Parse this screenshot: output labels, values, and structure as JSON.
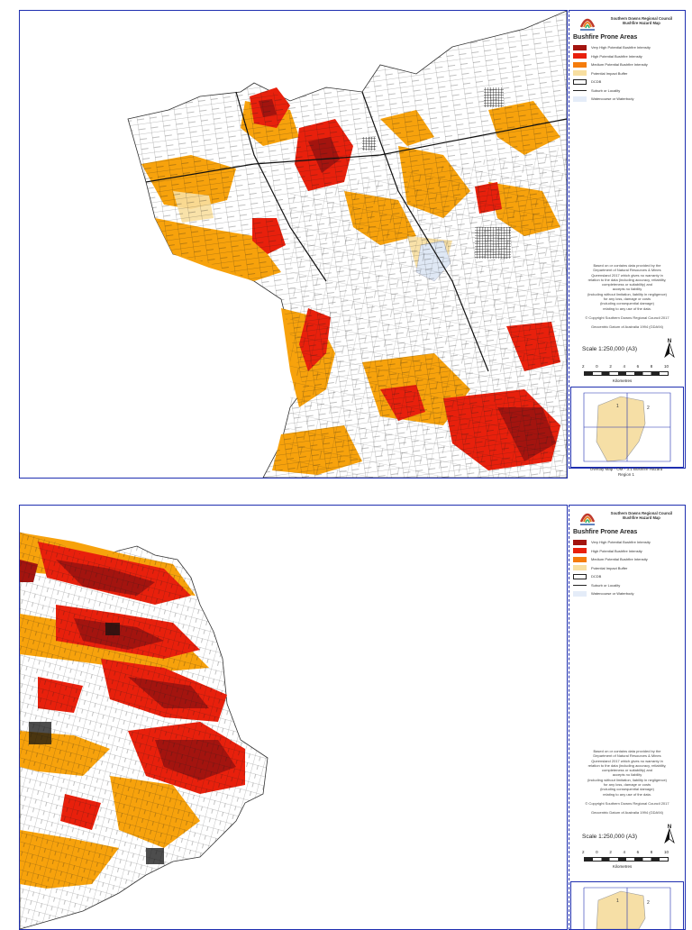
{
  "legend": {
    "council": "Southern Downs Regional Council",
    "map_title": "Bushfire Hazard Map",
    "title": "Bushfire Prone Areas",
    "items": [
      {
        "label": "Very High Potential Bushfire Intensity",
        "color": "#a3140f",
        "kind": "fill"
      },
      {
        "label": "High Potential Bushfire Intensity",
        "color": "#e8200c",
        "kind": "fill"
      },
      {
        "label": "Medium Potential Bushfire Intensity",
        "color": "#f57c0c",
        "kind": "fill"
      },
      {
        "label": "Potential Impact Buffer",
        "color": "#f8dfa0",
        "kind": "fill"
      },
      {
        "label": "DCDB",
        "color": "#ffffff",
        "kind": "outline"
      },
      {
        "label": "Suburb or Locality",
        "color": "#222222",
        "kind": "line"
      },
      {
        "label": "Watercourse or Waterbody",
        "color": "#e4ecf8",
        "kind": "fill"
      }
    ],
    "disclaimer": [
      "Based on or contains data provided by the",
      "Department of Natural Resources & Mines",
      "Queensland 2017 which gives no warranty in",
      "relation to the data (including accuracy, reliability,",
      "completeness or suitability) and",
      "accepts no liability",
      "(including without limitation, liability in negligence)",
      "for any loss, damage or costs",
      "(including consequential damage)",
      "relating to any use of the data.",
      "",
      "© Copyright Southern Downs Regional Council 2017",
      "",
      "Geocentric Datum of Australia 1994 (GDA94)"
    ],
    "scale": "Scale 1:250,000  (A3)",
    "scale_ticks": [
      "2",
      "0",
      "2",
      "4",
      "6",
      "8",
      "10"
    ],
    "units": "Kilometres",
    "north": "N",
    "overlay_caption": [
      "Overlay Map - OM - 3.1 Bushfire Hazard",
      "Region 1"
    ],
    "inset_numbers": [
      "1",
      "2"
    ]
  },
  "map": {
    "place_labels": [
      "",
      "",
      "",
      "",
      "",
      "",
      "",
      "",
      "",
      "",
      "",
      "",
      "",
      ""
    ],
    "colors": {
      "very_high": "#a3140f",
      "high": "#e8200c",
      "medium": "#f7a20c",
      "buffer": "#f8dfa0",
      "water": "#dfe8f5",
      "urban": "#111111"
    }
  }
}
